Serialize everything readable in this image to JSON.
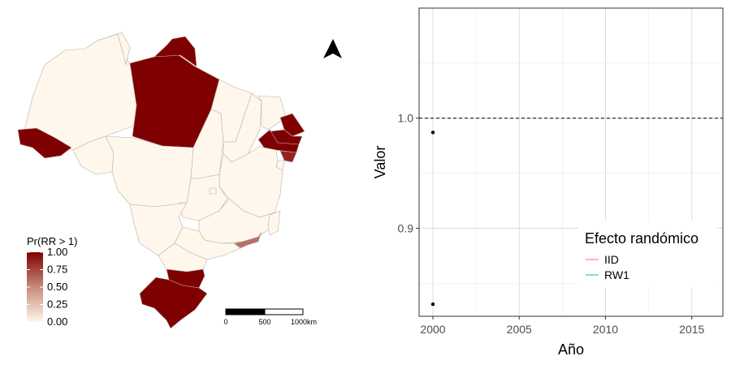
{
  "map": {
    "legend_title": "Pr(RR > 1)",
    "legend_ticks": [
      "1.00",
      "0.75",
      "0.50",
      "0.25",
      "0.00"
    ],
    "legend_colors": {
      "high": "#7f0000",
      "low": "#fff7ec"
    },
    "scale_bar_labels": [
      "0",
      "500",
      "1000km"
    ],
    "north_arrow_icon": "north-arrow-icon",
    "region_values": [
      {
        "region": "Amazonas",
        "value": 0.0
      },
      {
        "region": "Acre",
        "value": 1.0
      },
      {
        "region": "Roraima",
        "value": 0.0
      },
      {
        "region": "Amapá",
        "value": 1.0
      },
      {
        "region": "Pará",
        "value": 1.0
      },
      {
        "region": "Rondônia",
        "value": 0.0
      },
      {
        "region": "Mato Grosso",
        "value": 0.0
      },
      {
        "region": "Tocantins",
        "value": 0.0
      },
      {
        "region": "Maranhão",
        "value": 0.0
      },
      {
        "region": "Piauí",
        "value": 0.0
      },
      {
        "region": "Ceará",
        "value": 0.0
      },
      {
        "region": "Rio Grande do Norte",
        "value": 1.0
      },
      {
        "region": "Paraíba",
        "value": 1.0
      },
      {
        "region": "Pernambuco",
        "value": 1.0
      },
      {
        "region": "Alagoas",
        "value": 0.85
      },
      {
        "region": "Sergipe",
        "value": 0.0
      },
      {
        "region": "Bahia",
        "value": 0.0
      },
      {
        "region": "Goiás",
        "value": 0.0
      },
      {
        "region": "Distrito Federal",
        "value": 0.0
      },
      {
        "region": "Mato Grosso do Sul",
        "value": 0.0
      },
      {
        "region": "Minas Gerais",
        "value": 0.0
      },
      {
        "region": "Espírito Santo",
        "value": 0.0
      },
      {
        "region": "Rio de Janeiro",
        "value": 0.55
      },
      {
        "region": "São Paulo",
        "value": 0.0
      },
      {
        "region": "Paraná",
        "value": 0.0
      },
      {
        "region": "Santa Catarina",
        "value": 1.0
      },
      {
        "region": "Rio Grande do Sul",
        "value": 1.0
      }
    ]
  },
  "chart_data": {
    "type": "scatter",
    "xlabel": "Año",
    "ylabel": "Valor",
    "xlim": [
      1999.2,
      2016.8
    ],
    "ylim": [
      0.82,
      1.1
    ],
    "x_ticks": [
      2000,
      2005,
      2010,
      2015
    ],
    "y_ticks": [
      0.9,
      1.0
    ],
    "grid": true,
    "reference_line": {
      "y": 1.0,
      "style": "dashed"
    },
    "points": [
      {
        "x": 2000,
        "y": 0.987
      },
      {
        "x": 2000,
        "y": 0.831
      }
    ],
    "legend": {
      "title": "Efecto randómico",
      "position": "bottom-right",
      "entries": [
        {
          "name": "IID",
          "color": "#f8766d"
        },
        {
          "name": "RW1",
          "color": "#00bfc4"
        }
      ]
    }
  }
}
